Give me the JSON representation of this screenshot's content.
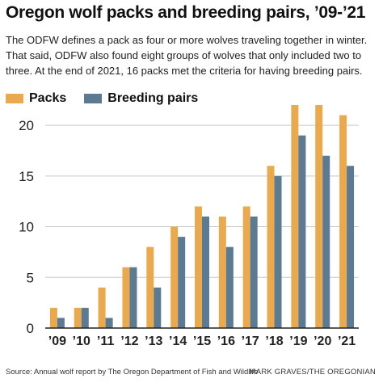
{
  "title": "Oregon wolf packs and breeding pairs, ’09-’21",
  "subtitle": "The ODFW defines a pack as four or more wolves traveling together in winter. That said, ODFW also found eight groups of wolves that only included two to three. At the end of 2021, 16 packs met the criteria for having breeding pairs.",
  "source": "Source: Annual wolf report by The Oregon Department of Fish and Wildlife",
  "credit": "MARK GRAVES/THE OREGONIAN",
  "colors": {
    "packs": "#e8a94f",
    "breeding_pairs": "#5d7a93",
    "grid": "#c8c8c8",
    "axis": "#222222"
  },
  "chart_data": {
    "type": "bar",
    "categories": [
      "’09",
      "’10",
      "’11",
      "’12",
      "’13",
      "’14",
      "’15",
      "’16",
      "’17",
      "’18",
      "’19",
      "’20",
      "’21"
    ],
    "series": [
      {
        "name": "Packs",
        "values": [
          2,
          2,
          4,
          6,
          8,
          10,
          12,
          11,
          12,
          16,
          22,
          22,
          21
        ]
      },
      {
        "name": "Breeding pairs",
        "values": [
          1,
          2,
          1,
          6,
          4,
          9,
          11,
          8,
          11,
          15,
          19,
          17,
          16
        ]
      }
    ],
    "yticks": [
      0,
      5,
      10,
      15,
      20
    ],
    "ylim": [
      0,
      22
    ],
    "grid": true,
    "legend": "top-left"
  }
}
